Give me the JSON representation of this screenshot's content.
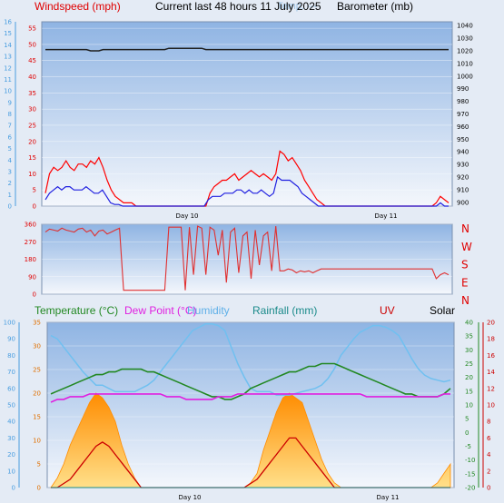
{
  "header": {
    "title": "Current last 48 hours 11 July 2025",
    "legend_left": "Windspeed (mph)",
    "legend_mid_faded": "Temp. ---",
    "legend_right": "Barometer (mb)"
  },
  "colors": {
    "background": "#e4ebf5",
    "plot_bg_top": "#8fb4e3",
    "plot_bg_bottom": "#f2f6fc",
    "gust": "#ff0000",
    "wind": "#2020e0",
    "barometer": "#202020",
    "direction": "#e03030",
    "temperature": "#228822",
    "dew_point": "#e020e0",
    "humidity": "#70c0f0",
    "rainfall": "#ff8c00",
    "uv": "#cc0000",
    "solar": "#000000"
  },
  "chart_data": [
    {
      "type": "line",
      "title": "",
      "series": [
        {
          "name": "Windspeed (mph)",
          "axis": "left",
          "values": [
            2,
            4,
            5,
            6,
            5,
            6,
            6,
            5,
            5,
            5,
            6,
            5,
            4,
            4,
            5,
            3,
            1,
            0.5,
            0.5,
            0,
            0,
            0,
            0,
            0,
            0,
            0,
            0,
            0,
            0,
            0,
            0,
            0,
            0,
            0,
            0,
            0,
            0,
            0,
            0,
            0,
            2,
            3,
            3,
            3,
            4,
            4,
            4,
            5,
            5,
            4,
            5,
            4,
            4,
            5,
            4,
            3,
            4,
            9,
            8,
            8,
            8,
            7,
            6,
            4,
            3,
            2,
            1,
            0,
            0,
            0,
            0,
            0,
            0,
            0,
            0,
            0,
            0,
            0,
            0,
            0,
            0,
            0,
            0,
            0,
            0,
            0,
            0,
            0,
            0,
            0,
            0,
            0,
            0,
            0,
            0,
            0,
            0,
            1,
            0,
            0
          ]
        },
        {
          "name": "Gust (mph)",
          "axis": "left",
          "values": [
            4,
            10,
            12,
            11,
            12,
            14,
            12,
            11,
            13,
            13,
            12,
            14,
            13,
            15,
            12,
            8,
            5,
            3,
            2,
            1,
            1,
            1,
            0,
            0,
            0,
            0,
            0,
            0,
            0,
            0,
            0,
            0,
            0,
            0,
            0,
            0,
            0,
            0,
            0,
            0,
            4,
            6,
            7,
            8,
            8,
            9,
            10,
            8,
            9,
            10,
            11,
            10,
            9,
            10,
            9,
            8,
            10,
            17,
            16,
            14,
            15,
            13,
            11,
            8,
            6,
            4,
            2,
            1,
            0,
            0,
            0,
            0,
            0,
            0,
            0,
            0,
            0,
            0,
            0,
            0,
            0,
            0,
            0,
            0,
            0,
            0,
            0,
            0,
            0,
            0,
            0,
            0,
            0,
            0,
            0,
            1,
            3,
            2,
            1
          ]
        },
        {
          "name": "Barometer (mb)",
          "axis": "right",
          "values": [
            1021,
            1021,
            1021,
            1021,
            1021,
            1021,
            1021,
            1021,
            1021,
            1021,
            1021,
            1020,
            1020,
            1020,
            1021,
            1021,
            1021,
            1021,
            1021,
            1021,
            1021,
            1021,
            1021,
            1021,
            1021,
            1021,
            1021,
            1021,
            1021,
            1021,
            1022,
            1022,
            1022,
            1022,
            1022,
            1022,
            1022,
            1022,
            1022,
            1021,
            1021,
            1021,
            1021,
            1021,
            1021,
            1021,
            1021,
            1021,
            1021,
            1021,
            1021,
            1021,
            1021,
            1021,
            1021,
            1021,
            1021,
            1021,
            1021,
            1021,
            1021,
            1021,
            1021,
            1021,
            1021,
            1021,
            1021,
            1021,
            1021,
            1021,
            1021,
            1021,
            1021,
            1021,
            1021,
            1021,
            1021,
            1021,
            1021,
            1021,
            1021,
            1021,
            1021,
            1021,
            1021,
            1021,
            1021,
            1021,
            1021,
            1021,
            1021,
            1021,
            1021,
            1021,
            1021,
            1021,
            1021,
            1021,
            1021
          ]
        }
      ],
      "x_ticks": [
        "Day 10",
        "Day 11"
      ],
      "y_left_range": [
        0,
        57
      ],
      "y_left_ticks": [
        0,
        5,
        10,
        15,
        20,
        25,
        30,
        35,
        40,
        45,
        50,
        55
      ],
      "y_far_left_ticks": [
        0,
        1,
        2,
        3,
        4,
        5,
        6,
        7,
        8,
        9,
        10,
        11,
        12,
        13,
        14,
        15,
        16
      ],
      "y_right_range": [
        897,
        1043
      ],
      "y_right_ticks": [
        900,
        910,
        920,
        930,
        940,
        950,
        960,
        970,
        980,
        990,
        1000,
        1010,
        1020,
        1030,
        1040
      ]
    },
    {
      "type": "line",
      "title": "",
      "series": [
        {
          "name": "Wind direction",
          "values": [
            320,
            335,
            330,
            325,
            340,
            330,
            325,
            320,
            335,
            340,
            320,
            330,
            300,
            325,
            330,
            310,
            320,
            330,
            340,
            20,
            20,
            20,
            20,
            20,
            20,
            20,
            20,
            20,
            20,
            20,
            345,
            345,
            345,
            345,
            20,
            345,
            100,
            350,
            340,
            100,
            345,
            330,
            200,
            330,
            60,
            320,
            340,
            110,
            300,
            320,
            80,
            330,
            150,
            300,
            320,
            120,
            350,
            120,
            120,
            130,
            125,
            110,
            120,
            115,
            120,
            110,
            120,
            130,
            130,
            130,
            130,
            130,
            130,
            130,
            130,
            130,
            130,
            130,
            130,
            130,
            130,
            130,
            130,
            130,
            130,
            130,
            130,
            130,
            130,
            130,
            130,
            130,
            130,
            130,
            130,
            80,
            100,
            110,
            100
          ]
        }
      ],
      "y_left_ticks": [
        0,
        90,
        180,
        270,
        360
      ],
      "y_right_labels": [
        "N",
        "W",
        "S",
        "E",
        "N"
      ]
    },
    {
      "type": "line",
      "title": "",
      "legend": [
        "Temperature (°C)",
        "Dew Point (°C)",
        "Humidity",
        "Rainfall (mm)",
        "UV",
        "Solar"
      ],
      "series": [
        {
          "name": "Temperature (°C)",
          "axis": "right2",
          "values": [
            14,
            15,
            16,
            17,
            18,
            19,
            20,
            21,
            21,
            22,
            22,
            23,
            23,
            23,
            23,
            22,
            22,
            21,
            20,
            19,
            18,
            17,
            16,
            15,
            14,
            13,
            13,
            12,
            12,
            13,
            14,
            16,
            17,
            18,
            19,
            20,
            21,
            22,
            22,
            23,
            24,
            24,
            25,
            25,
            25,
            24,
            23,
            22,
            21,
            20,
            19,
            18,
            17,
            16,
            15,
            14,
            14,
            13,
            13,
            13,
            13,
            14,
            16
          ]
        },
        {
          "name": "Dew Point (°C)",
          "axis": "right2",
          "values": [
            11,
            12,
            12,
            13,
            13,
            13,
            14,
            14,
            14,
            14,
            14,
            14,
            14,
            14,
            14,
            14,
            14,
            14,
            13,
            13,
            13,
            12,
            12,
            12,
            12,
            12,
            13,
            13,
            13,
            14,
            14,
            14,
            14,
            14,
            14,
            14,
            14,
            14,
            14,
            14,
            14,
            14,
            14,
            14,
            14,
            14,
            14,
            14,
            14,
            13,
            13,
            13,
            13,
            13,
            13,
            13,
            13,
            13,
            13,
            13,
            13,
            14,
            14
          ]
        },
        {
          "name": "Humidity",
          "axis": "far_left",
          "values": [
            92,
            90,
            85,
            80,
            75,
            70,
            66,
            62,
            62,
            60,
            58,
            58,
            58,
            58,
            60,
            62,
            65,
            70,
            75,
            80,
            85,
            90,
            95,
            97,
            99,
            99,
            98,
            95,
            85,
            75,
            67,
            60,
            58,
            58,
            58,
            56,
            56,
            56,
            57,
            58,
            59,
            60,
            62,
            66,
            72,
            80,
            85,
            90,
            94,
            96,
            98,
            98,
            97,
            95,
            92,
            85,
            78,
            72,
            68,
            66,
            65,
            64,
            65
          ]
        },
        {
          "name": "Rainfall (mm)",
          "axis": "left",
          "values": [
            0,
            0,
            0,
            0,
            0,
            0,
            0,
            0,
            0,
            0,
            0,
            0,
            0,
            0,
            0,
            0,
            0,
            0,
            0,
            0,
            0,
            0,
            0,
            0,
            0,
            0,
            0,
            0,
            0,
            0,
            0,
            0,
            0,
            0,
            0,
            0,
            0,
            0,
            0,
            0,
            0,
            0,
            0,
            0,
            0,
            0,
            0,
            0,
            0,
            0,
            0,
            0,
            0,
            0,
            0,
            0,
            0,
            0,
            0,
            0,
            0,
            0,
            0
          ]
        },
        {
          "name": "Solar",
          "axis": "left",
          "values": [
            0,
            2,
            5,
            9,
            12,
            15,
            18,
            20,
            19,
            17,
            14,
            9,
            5,
            2,
            0,
            0,
            0,
            0,
            0,
            0,
            0,
            0,
            0,
            0,
            0,
            0,
            0,
            0,
            0,
            0,
            0,
            1,
            3,
            8,
            12,
            16,
            19,
            20,
            19,
            18,
            14,
            10,
            6,
            3,
            1,
            0,
            0,
            0,
            0,
            0,
            0,
            0,
            0,
            0,
            0,
            0,
            0,
            0,
            0,
            0,
            1,
            3,
            5
          ]
        },
        {
          "name": "UV",
          "axis": "right3",
          "values": [
            0,
            0,
            0.5,
            1,
            2,
            3,
            4,
            5,
            5.5,
            5,
            4,
            3,
            2,
            1,
            0,
            0,
            0,
            0,
            0,
            0,
            0,
            0,
            0,
            0,
            0,
            0,
            0,
            0,
            0,
            0,
            0,
            0.5,
            1,
            2,
            3,
            4,
            5,
            6,
            6,
            5,
            4,
            3,
            2,
            1,
            0,
            0,
            0,
            0,
            0,
            0,
            0,
            0,
            0,
            0,
            0,
            0,
            0,
            0,
            0,
            0,
            0,
            0,
            0
          ]
        }
      ],
      "x_ticks": [
        "Day 10",
        "Day 11"
      ],
      "y_far_left_ticks": [
        0,
        10,
        20,
        30,
        40,
        50,
        60,
        70,
        80,
        90,
        100
      ],
      "y_left_ticks": [
        0,
        5,
        10,
        15,
        20,
        25,
        30,
        35
      ],
      "y_right2_ticks": [
        -20,
        -15,
        -10,
        -5,
        0,
        5,
        10,
        15,
        20,
        25,
        30,
        35,
        40
      ],
      "y_right3_ticks": [
        0,
        2,
        4,
        6,
        8,
        10,
        12,
        14,
        16,
        18,
        20
      ]
    }
  ]
}
